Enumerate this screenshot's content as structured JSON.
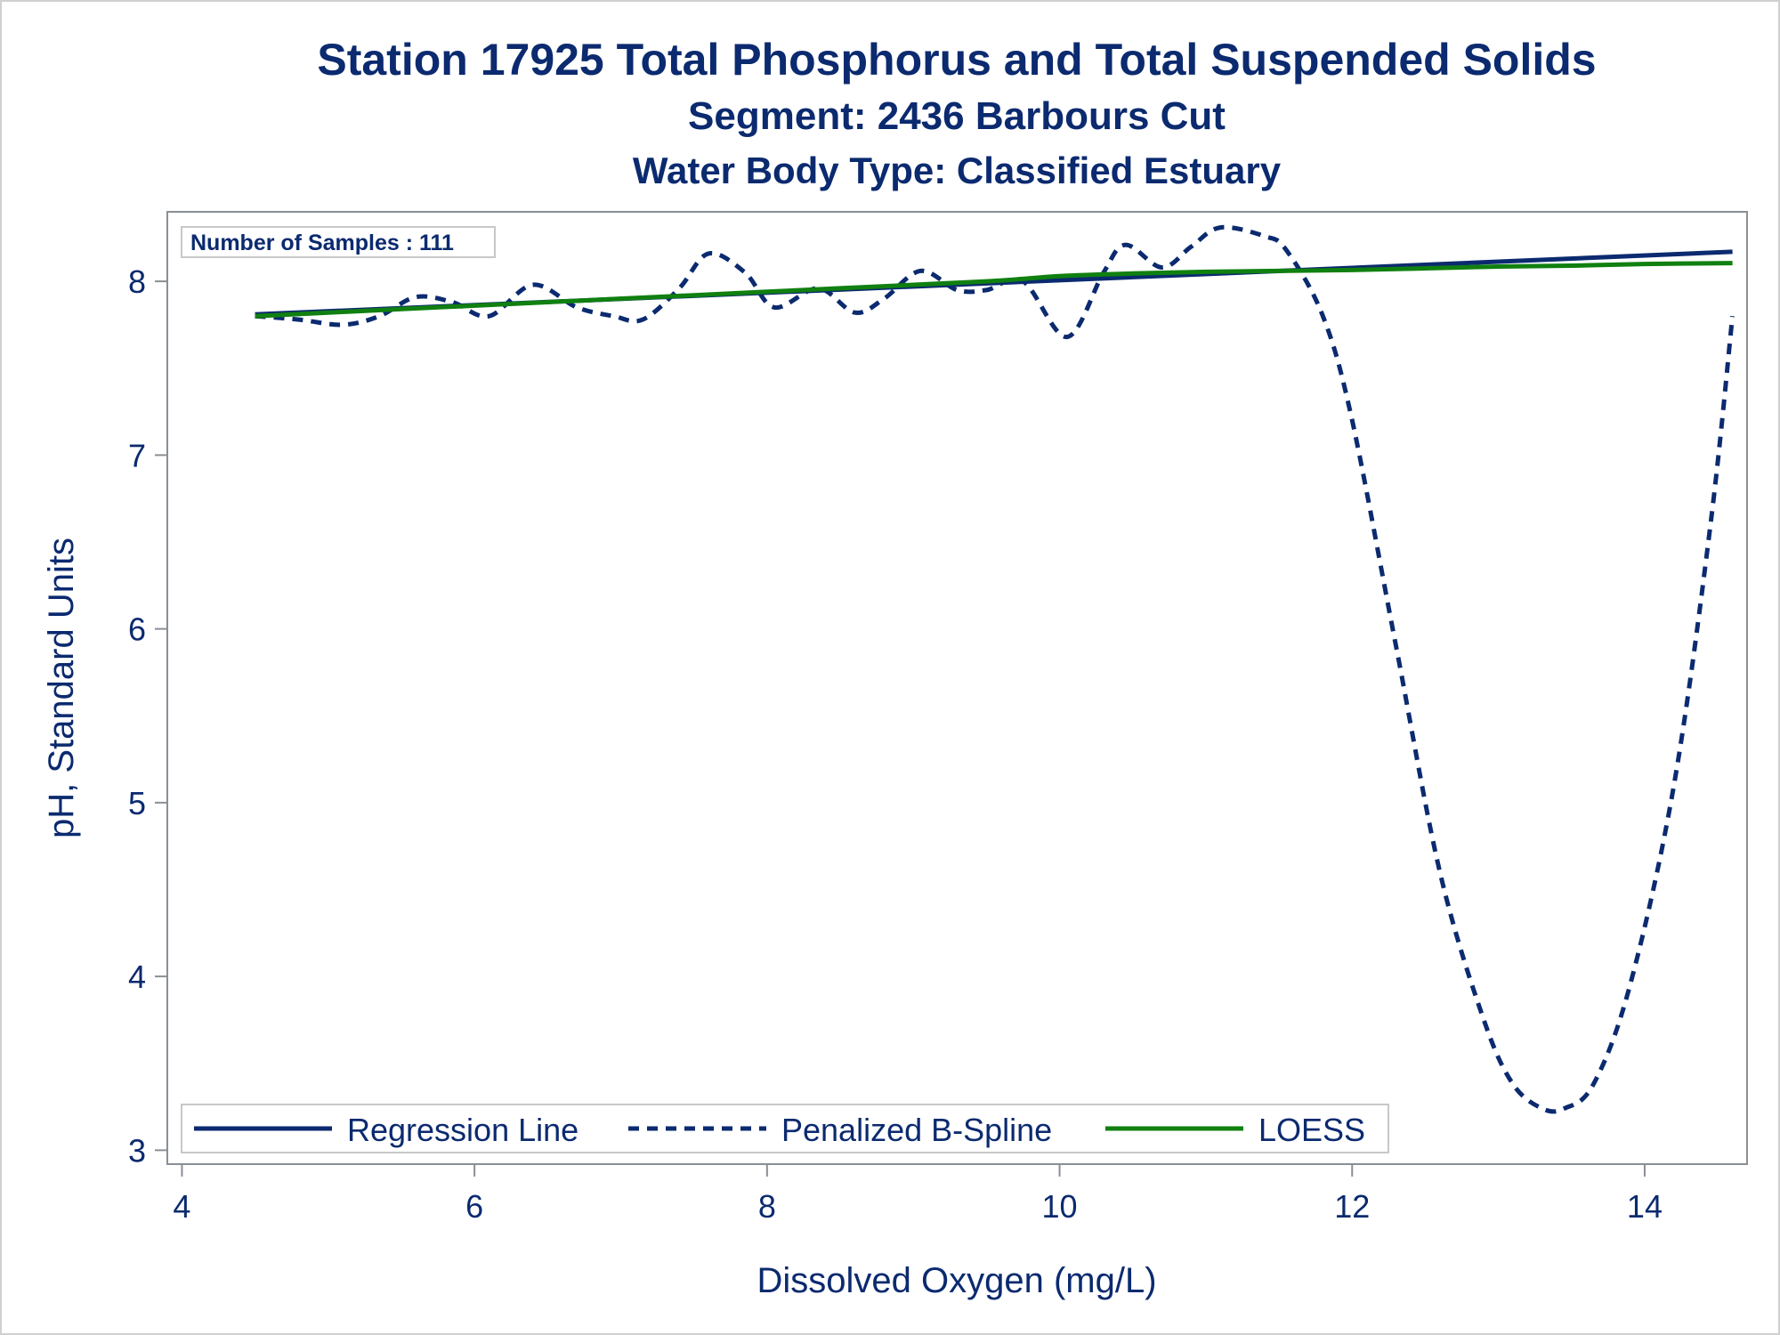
{
  "chart_data": {
    "type": "line",
    "title": "Station 17925  Total Phosphorus and Total Suspended Solids",
    "subtitle": "Segment: 2436  Barbours Cut",
    "subtitle2": "Water Body Type: Classified Estuary",
    "xlabel": "Dissolved Oxygen (mg/L)",
    "ylabel": "pH, Standard Units",
    "xlim": [
      3.9,
      14.7
    ],
    "ylim": [
      2.92,
      8.4
    ],
    "xticks": [
      4,
      6,
      8,
      10,
      12,
      14
    ],
    "yticks": [
      3,
      4,
      5,
      6,
      7,
      8
    ],
    "annotation": "Number of Samples : 111",
    "legend_position": "bottom-left inside",
    "grid": false,
    "series": [
      {
        "name": "Regression Line",
        "style": "solid",
        "color": "#0b2a6f",
        "x": [
          4.5,
          14.6
        ],
        "y": [
          7.81,
          8.17
        ]
      },
      {
        "name": "Penalized B-Spline",
        "style": "dashed",
        "color": "#0b2a6f",
        "x": [
          4.5,
          4.8,
          5.1,
          5.35,
          5.6,
          5.85,
          6.1,
          6.4,
          6.7,
          6.95,
          7.15,
          7.4,
          7.6,
          7.85,
          8.05,
          8.35,
          8.6,
          8.8,
          9.05,
          9.3,
          9.5,
          9.75,
          10.05,
          10.3,
          10.45,
          10.7,
          10.9,
          11.1,
          11.4,
          11.55,
          11.8,
          12.0,
          12.3,
          12.6,
          12.9,
          13.1,
          13.3,
          13.45,
          13.65,
          13.9,
          14.2,
          14.45,
          14.6
        ],
        "y": [
          7.8,
          7.78,
          7.75,
          7.8,
          7.91,
          7.88,
          7.8,
          7.98,
          7.85,
          7.8,
          7.78,
          7.96,
          8.16,
          8.05,
          7.85,
          7.96,
          7.82,
          7.9,
          8.06,
          7.95,
          7.95,
          8.0,
          7.68,
          8.05,
          8.21,
          8.08,
          8.2,
          8.31,
          8.26,
          8.18,
          7.8,
          7.2,
          5.9,
          4.6,
          3.75,
          3.38,
          3.24,
          3.24,
          3.38,
          3.95,
          5.1,
          6.6,
          7.8
        ]
      },
      {
        "name": "LOESS",
        "style": "solid",
        "color": "#108010",
        "x": [
          4.5,
          5.5,
          6.5,
          7.5,
          8.5,
          9.5,
          10.0,
          10.5,
          11.0,
          11.5,
          12.0,
          12.5,
          13.0,
          13.5,
          14.0,
          14.6
        ],
        "y": [
          7.8,
          7.84,
          7.88,
          7.92,
          7.96,
          8.0,
          8.03,
          8.045,
          8.055,
          8.06,
          8.065,
          8.075,
          8.085,
          8.09,
          8.1,
          8.105
        ]
      }
    ]
  }
}
